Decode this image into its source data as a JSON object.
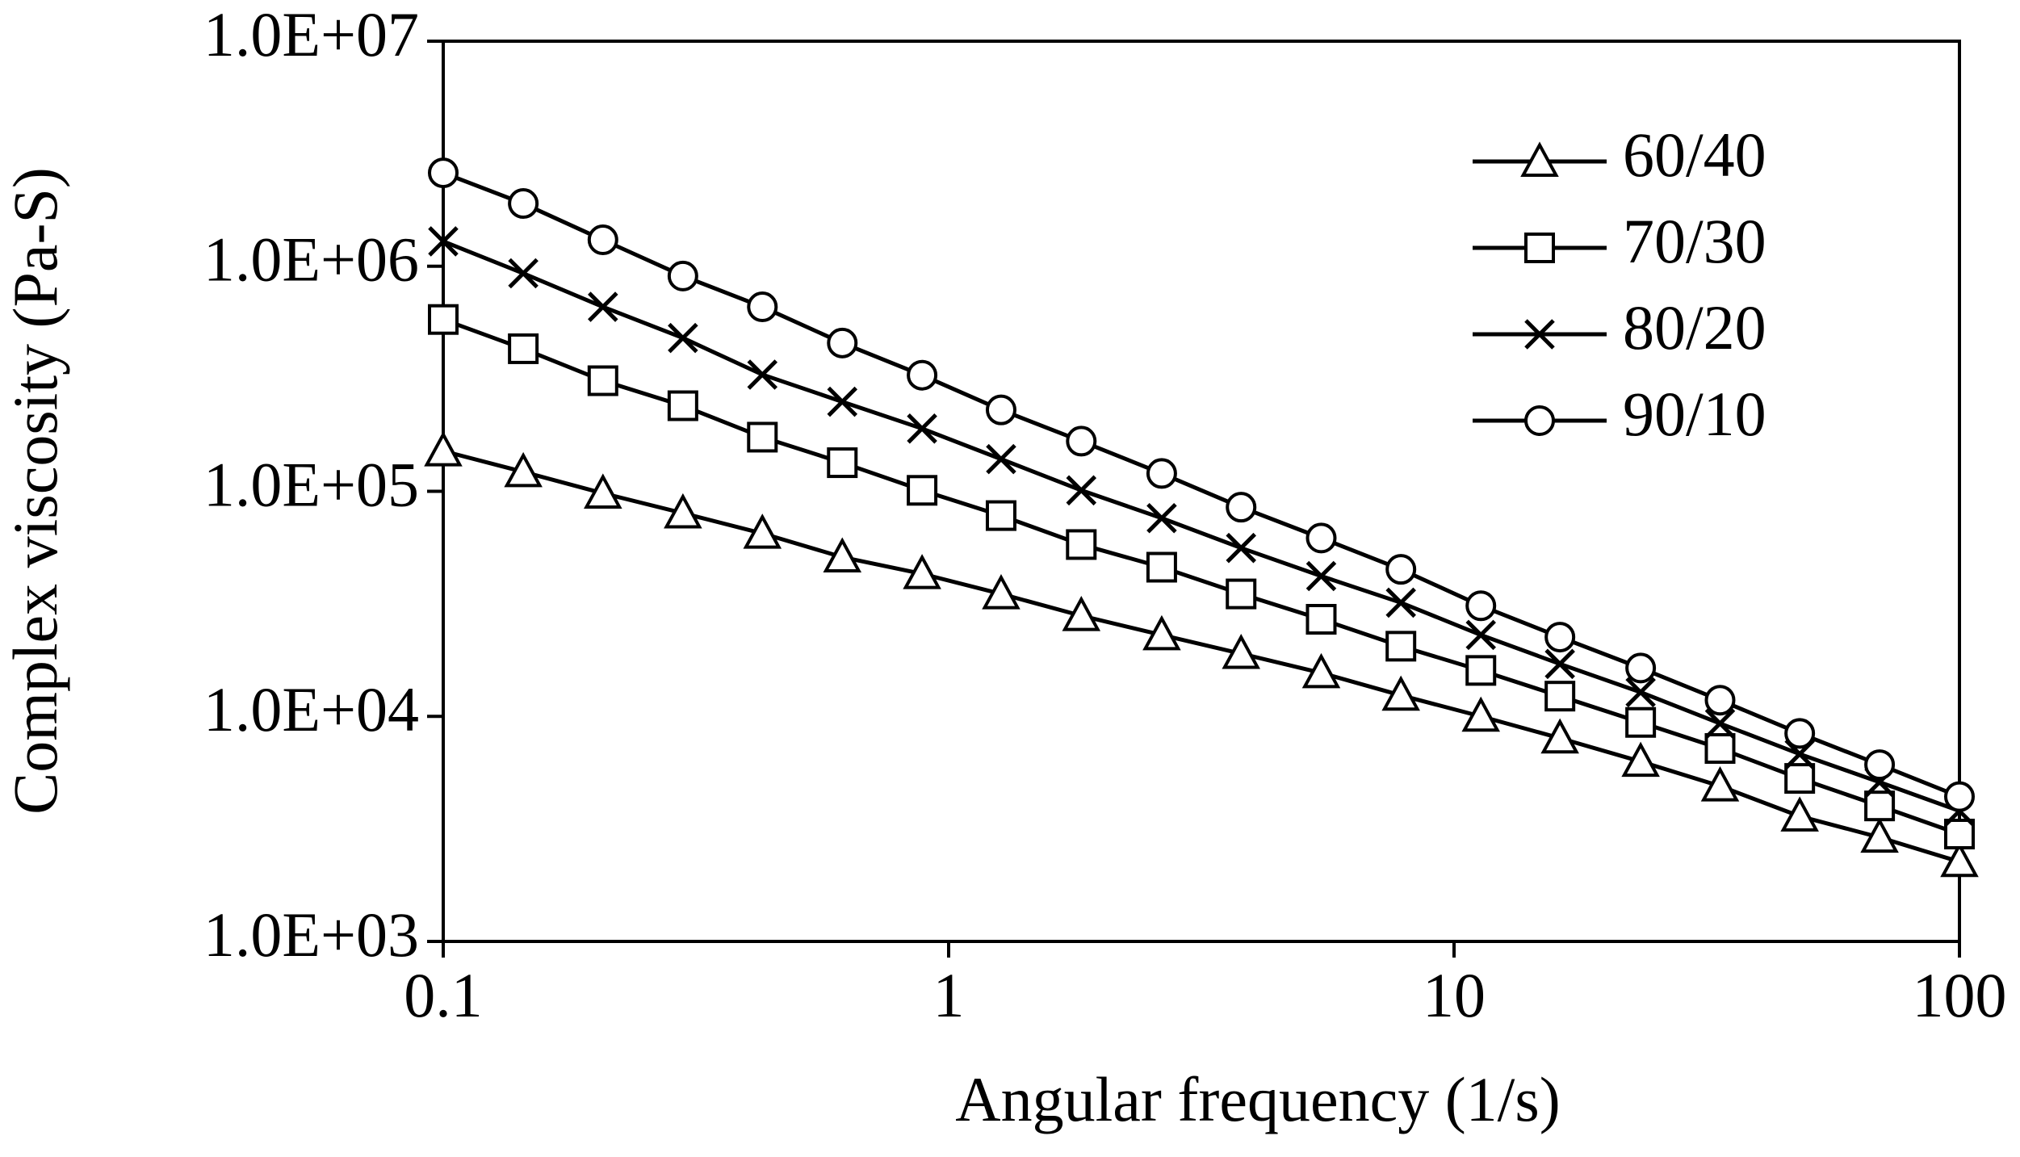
{
  "chart_data": {
    "type": "line",
    "x_label": "Angular frequency (1/s)",
    "y_label": "Complex viscosity (Pa-S)",
    "x": [
      0.1,
      0.144,
      0.207,
      0.298,
      0.428,
      0.616,
      0.886,
      1.27,
      1.83,
      2.64,
      3.79,
      5.46,
      7.85,
      11.3,
      16.2,
      23.4,
      33.6,
      48.3,
      69.5,
      100
    ],
    "series": [
      {
        "name": "60/40",
        "color": "#000000",
        "marker": "triangle",
        "values": [
          151000,
          122000,
          98000,
          80000,
          65000,
          51000,
          43000,
          35000,
          28000,
          23000,
          19000,
          15600,
          12400,
          10000,
          8000,
          6300,
          4900,
          3600,
          2900,
          2260
        ]
      },
      {
        "name": "70/30",
        "color": "#000000",
        "marker": "square",
        "values": [
          580000,
          430000,
          310000,
          240000,
          174000,
          134000,
          101000,
          78000,
          58000,
          46000,
          35000,
          27000,
          20500,
          16000,
          12300,
          9400,
          7200,
          5300,
          4000,
          3000
        ]
      },
      {
        "name": "80/20",
        "color": "#000000",
        "marker": "x",
        "values": [
          1290000,
          930000,
          660000,
          480000,
          330000,
          250000,
          190000,
          139000,
          101000,
          76000,
          56000,
          42000,
          32000,
          23000,
          17100,
          12800,
          9300,
          6800,
          5100,
          3800
        ]
      },
      {
        "name": "90/10",
        "color": "#000000",
        "marker": "circle",
        "values": [
          2600000,
          1900000,
          1310000,
          905000,
          660000,
          456000,
          328000,
          230000,
          167000,
          120000,
          85000,
          62000,
          45000,
          31000,
          22500,
          16400,
          11800,
          8400,
          6100,
          4400
        ]
      }
    ],
    "x_log": true,
    "y_log": true,
    "xlim": [
      0.1,
      100
    ],
    "xticks": [
      0.1,
      1,
      10,
      100
    ],
    "ylim": [
      1000,
      10000000
    ],
    "yticks": [
      {
        "value": 1000,
        "label": "1.0E+03"
      },
      {
        "value": 10000,
        "label": "1.0E+04"
      },
      {
        "value": 100000,
        "label": "1.0E+05"
      },
      {
        "value": 1000000,
        "label": "1.0E+06"
      },
      {
        "value": 10000000,
        "label": "1.0E+07"
      }
    ],
    "legend": "upper right",
    "grid": false
  }
}
